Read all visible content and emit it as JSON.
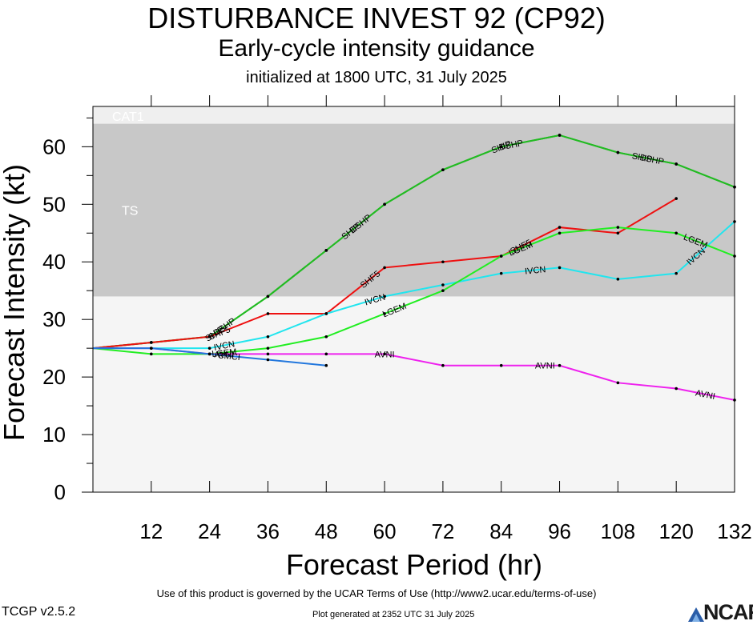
{
  "chart_data": {
    "type": "line",
    "title": "DISTURBANCE INVEST 92 (CP92)",
    "subtitle": "Early-cycle intensity guidance",
    "initialized": "initialized at 1800 UTC, 31 July 2025",
    "xlabel": "Forecast Period (hr)",
    "ylabel": "Forecast Intensity (kt)",
    "xlim": [
      0,
      132
    ],
    "ylim": [
      0,
      67
    ],
    "x_ticks": [
      12,
      24,
      36,
      48,
      60,
      72,
      84,
      96,
      108,
      120,
      132
    ],
    "y_ticks": [
      0,
      10,
      20,
      30,
      40,
      50,
      60
    ],
    "bands": [
      {
        "label": "TS",
        "from": 34,
        "to": 64,
        "color": "#c8c8c8"
      },
      {
        "label": "CAT1",
        "from": 64,
        "to": 67,
        "color": "#efefef"
      }
    ],
    "background_color": "#f5f5f5",
    "series": [
      {
        "name": "DSHP",
        "color": "#22bb22",
        "x": [
          0,
          12,
          24,
          36,
          48,
          60,
          72,
          84,
          96,
          108,
          120,
          132
        ],
        "y": [
          25,
          26,
          27,
          34,
          42,
          50,
          56,
          60,
          62,
          59,
          57,
          53
        ],
        "label_at": [
          27,
          55,
          86,
          115
        ]
      },
      {
        "name": "SHIP",
        "color": "#22bb22",
        "x": [
          0,
          12,
          24,
          36,
          48,
          60,
          72,
          84,
          96,
          108,
          120,
          132
        ],
        "y": [
          25,
          26,
          27,
          34,
          42,
          50,
          56,
          60,
          62,
          59,
          57,
          53
        ],
        "label_at": [
          25,
          53,
          84,
          113
        ]
      },
      {
        "name": "SHF5",
        "color": "#ee1111",
        "x": [
          0,
          12,
          24,
          36,
          48,
          60,
          72,
          84,
          96,
          108,
          120
        ],
        "y": [
          25,
          26,
          27,
          31,
          31,
          39,
          40,
          41,
          46,
          45,
          51
        ],
        "label_at": [
          26,
          57,
          88
        ]
      },
      {
        "name": "IVCN",
        "color": "#22e5ee",
        "x": [
          0,
          12,
          24,
          36,
          48,
          60,
          72,
          84,
          96,
          108,
          120,
          132
        ],
        "y": [
          25,
          25,
          25,
          27,
          31,
          34,
          36,
          38,
          39,
          37,
          38,
          47
        ],
        "label_at": [
          27,
          58,
          91,
          124
        ]
      },
      {
        "name": "LGEM",
        "color": "#22ee22",
        "x": [
          0,
          12,
          24,
          36,
          48,
          60,
          72,
          84,
          96,
          108,
          120,
          132
        ],
        "y": [
          25,
          24,
          24,
          25,
          27,
          31,
          35,
          41,
          45,
          46,
          45,
          41
        ],
        "label_at": [
          27,
          62,
          88,
          124
        ]
      },
      {
        "name": "AVNI",
        "color": "#ee22ee",
        "x": [
          0,
          12,
          24,
          36,
          48,
          60,
          72,
          84,
          96,
          108,
          120,
          132
        ],
        "y": [
          25,
          25,
          24,
          24,
          24,
          24,
          22,
          22,
          22,
          19,
          18,
          16
        ],
        "label_at": [
          27,
          60,
          93,
          126
        ]
      },
      {
        "name": "CMCI",
        "color": "#2277dd",
        "x": [
          0,
          12,
          24,
          36,
          48
        ],
        "y": [
          25,
          25,
          24,
          23,
          22
        ],
        "label_at": [
          28
        ]
      }
    ]
  },
  "footer": {
    "terms": "Use of this product is governed by the UCAR Terms of Use (http://www2.ucar.edu/terms-of-use)",
    "version": "TCGP v2.5.2",
    "generated": "Plot generated at 2352 UTC   31 July 2025",
    "logo": "NCAR"
  }
}
